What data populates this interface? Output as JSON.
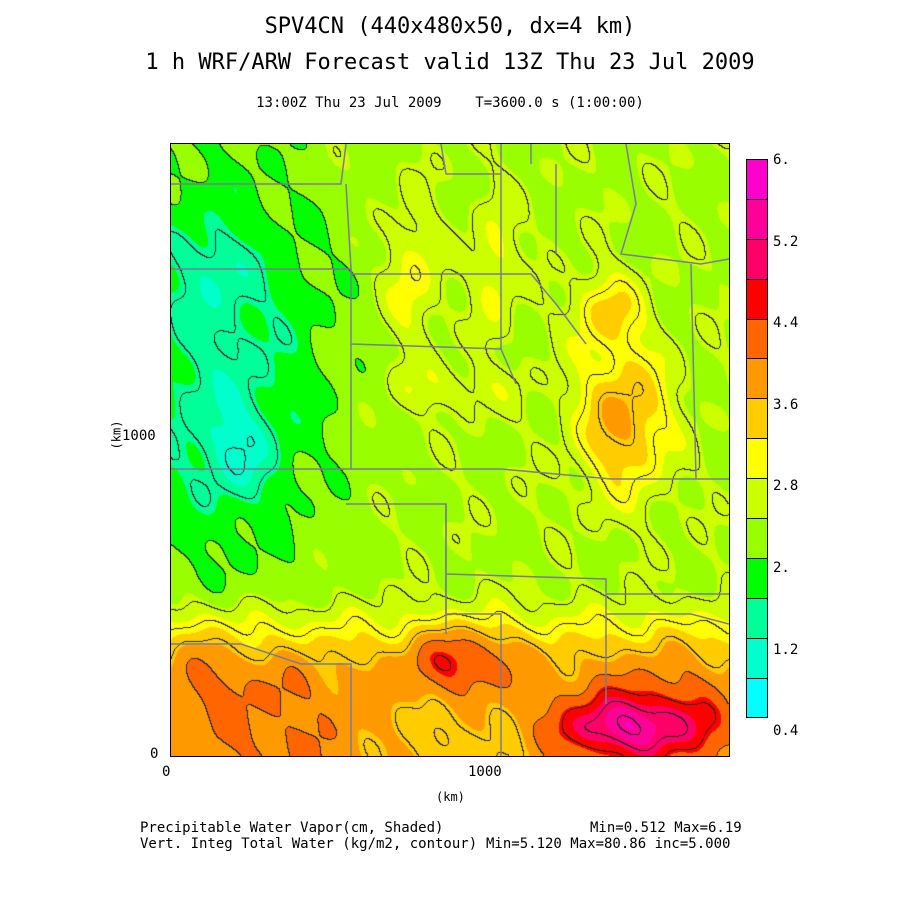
{
  "title": {
    "line1": "SPV4CN (440x480x50, dx=4 km)",
    "line2": "1 h WRF/ARW Forecast valid 13Z Thu 23 Jul 2009",
    "subtitle": "13:00Z Thu 23 Jul 2009    T=3600.0 s (1:00:00)"
  },
  "axes": {
    "x_label": "(km)",
    "y_label": "(km)",
    "x_ticks": [
      "0",
      "1000"
    ],
    "y_ticks": [
      "0",
      "1000"
    ],
    "x_range_km": [
      0,
      1760
    ],
    "y_range_km": [
      0,
      1920
    ]
  },
  "colorbar": {
    "labels": [
      "6.",
      "5.2",
      "4.4",
      "3.6",
      "2.8",
      "2.",
      "1.2",
      "0.4"
    ],
    "bins": [
      0.4,
      0.8,
      1.2,
      1.6,
      2.0,
      2.4,
      2.8,
      3.2,
      3.6,
      4.0,
      4.4,
      4.8,
      5.2,
      5.6,
      6.0
    ],
    "colors": [
      "#00ffff",
      "#00ffcc",
      "#00ff99",
      "#00ff00",
      "#99ff00",
      "#ccff00",
      "#ffff00",
      "#ffcc00",
      "#ff9900",
      "#ff6600",
      "#ff0000",
      "#ff0066",
      "#ff0099",
      "#ff00cc"
    ]
  },
  "footer": {
    "line1_left": "Precipitable Water Vapor(cm, Shaded)",
    "line1_right": "Min=0.512 Max=6.19",
    "line2_left": "Vert. Integ Total Water (kg/m2, contour)",
    "line2_right": "Min=5.120 Max=80.86 inc=5.000"
  },
  "field": {
    "shaded_min": 0.512,
    "shaded_max": 6.19,
    "contour_inc_cm": 0.5
  }
}
